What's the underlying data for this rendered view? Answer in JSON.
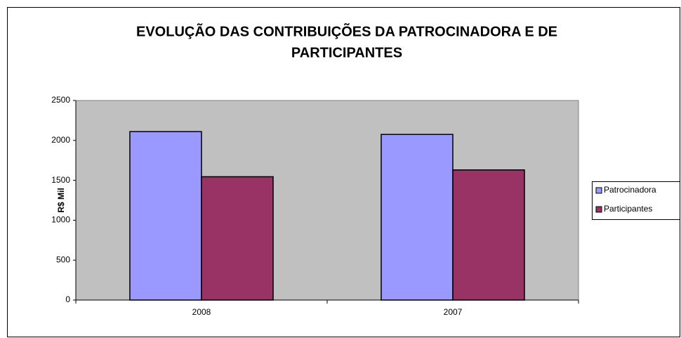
{
  "chart_data": {
    "type": "bar",
    "title": [
      "EVOLUÇÃO DAS CONTRIBUIÇÕES DA PATROCINADORA E DE",
      "PARTICIPANTES"
    ],
    "y_label": "R$ Mil",
    "categories": [
      "2008",
      "2007"
    ],
    "series": [
      {
        "name": "Patrocinadora",
        "color": "#9999ff",
        "values": [
          2110,
          2075
        ]
      },
      {
        "name": "Participantes",
        "color": "#993366",
        "values": [
          1545,
          1630
        ]
      }
    ],
    "ylim": [
      0,
      2500
    ],
    "yticks": [
      0,
      500,
      1000,
      1500,
      2000,
      2500
    ],
    "legend": "right"
  }
}
